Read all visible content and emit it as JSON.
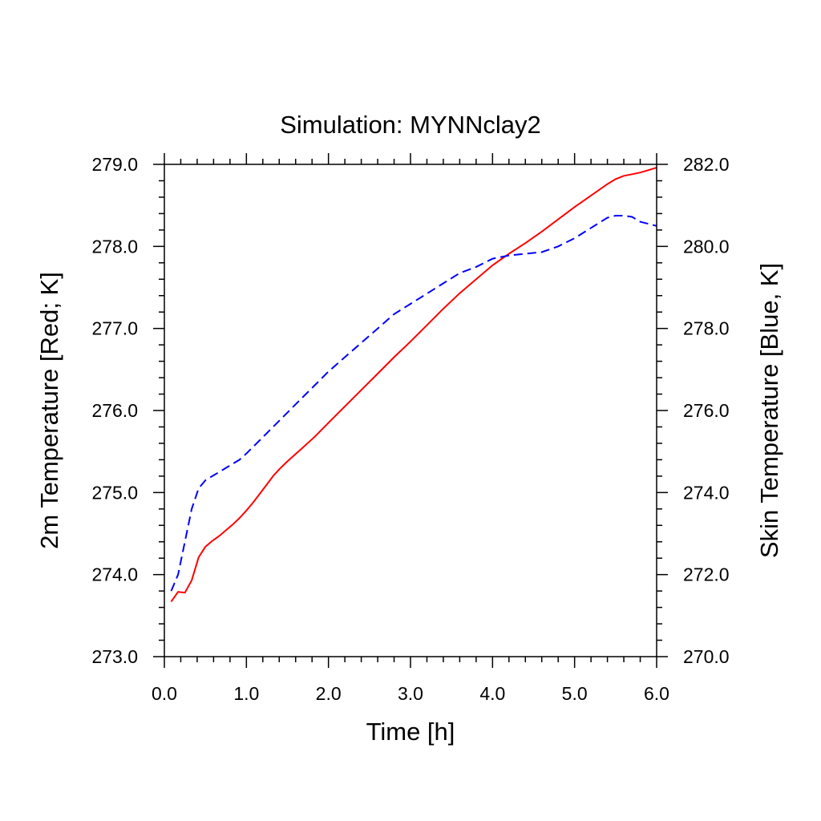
{
  "chart_data": {
    "type": "line",
    "title": "Simulation: MYNNclay2",
    "xlabel": "Time [h]",
    "ylabel_left": "2m Temperature [Red; K]",
    "ylabel_right": "Skin Temperature [Blue, K]",
    "xlim": [
      0,
      6
    ],
    "ylim_left": [
      273,
      279
    ],
    "ylim_right": [
      270,
      282
    ],
    "x_ticks": [
      "0.0",
      "1.0",
      "2.0",
      "3.0",
      "4.0",
      "5.0",
      "6.0"
    ],
    "y_left_ticks": [
      "273.0",
      "274.0",
      "275.0",
      "276.0",
      "277.0",
      "278.0",
      "279.0"
    ],
    "y_right_ticks": [
      "270.0",
      "272.0",
      "274.0",
      "276.0",
      "278.0",
      "280.0",
      "282.0"
    ],
    "grid": false,
    "series": [
      {
        "axis": "left",
        "color": "#ff0000",
        "style": "solid",
        "x": [
          0.083,
          0.167,
          0.25,
          0.333,
          0.417,
          0.5,
          0.583,
          0.667,
          0.75,
          0.833,
          0.917,
          1.0,
          1.083,
          1.167,
          1.25,
          1.333,
          1.417,
          1.5,
          1.667,
          1.833,
          2.0,
          2.2,
          2.4,
          2.6,
          2.8,
          3.0,
          3.2,
          3.4,
          3.6,
          3.8,
          4.0,
          4.2,
          4.4,
          4.6,
          4.8,
          5.0,
          5.2,
          5.4,
          5.5,
          5.6,
          5.7,
          5.8,
          5.9,
          6.0
        ],
        "values": [
          273.67,
          273.79,
          273.78,
          273.93,
          274.21,
          274.34,
          274.41,
          274.47,
          274.54,
          274.61,
          274.69,
          274.78,
          274.88,
          274.99,
          275.1,
          275.21,
          275.3,
          275.38,
          275.53,
          275.68,
          275.85,
          276.05,
          276.25,
          276.45,
          276.65,
          276.84,
          277.04,
          277.24,
          277.43,
          277.6,
          277.77,
          277.91,
          278.04,
          278.18,
          278.33,
          278.48,
          278.62,
          278.76,
          278.82,
          278.86,
          278.88,
          278.9,
          278.93,
          278.96
        ]
      },
      {
        "axis": "right",
        "color": "#0000ff",
        "style": "dashed",
        "x": [
          0.083,
          0.167,
          0.25,
          0.333,
          0.417,
          0.5,
          0.583,
          0.667,
          0.75,
          0.833,
          0.917,
          1.0,
          1.2,
          1.4,
          1.6,
          1.8,
          2.0,
          2.2,
          2.4,
          2.6,
          2.8,
          3.0,
          3.2,
          3.4,
          3.6,
          3.8,
          4.0,
          4.2,
          4.4,
          4.6,
          4.8,
          5.0,
          5.2,
          5.4,
          5.5,
          5.6,
          5.7,
          5.8,
          5.9,
          6.0
        ],
        "values": [
          271.6,
          272.0,
          272.8,
          273.6,
          274.1,
          274.3,
          274.4,
          274.5,
          274.6,
          274.7,
          274.8,
          274.95,
          275.35,
          275.75,
          276.15,
          276.55,
          276.95,
          277.3,
          277.65,
          278.0,
          278.35,
          278.6,
          278.85,
          279.1,
          279.35,
          279.5,
          279.7,
          279.78,
          279.82,
          279.86,
          280.0,
          280.2,
          280.45,
          280.7,
          280.75,
          280.75,
          280.72,
          280.6,
          280.55,
          280.5
        ]
      }
    ]
  }
}
